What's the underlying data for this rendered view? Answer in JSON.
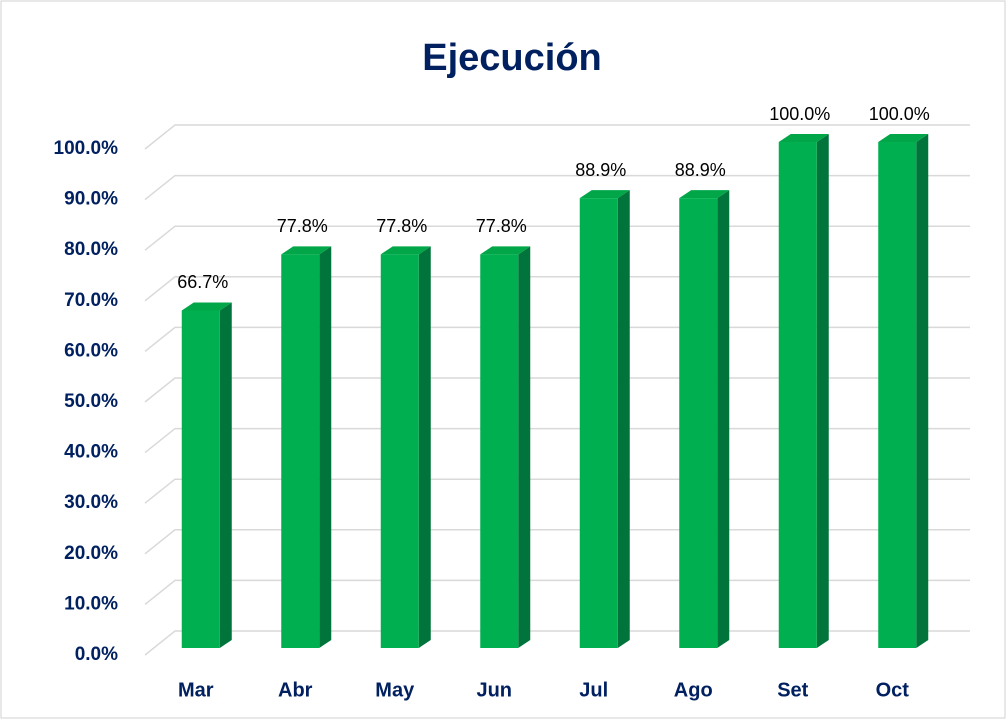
{
  "chart_data": {
    "type": "bar3d",
    "title": "Ejecución",
    "categories": [
      "Mar",
      "Abr",
      "May",
      "Jun",
      "Jul",
      "Ago",
      "Set",
      "Oct"
    ],
    "values": [
      66.7,
      77.8,
      77.8,
      77.8,
      88.9,
      88.9,
      100.0,
      100.0
    ],
    "value_labels": [
      "66.7%",
      "77.8%",
      "77.8%",
      "77.8%",
      "88.9%",
      "88.9%",
      "100.0%",
      "100.0%"
    ],
    "color": "#00b050",
    "ylim": [
      0,
      100
    ],
    "yticks": [
      {
        "value": 0,
        "label": "0.0%"
      },
      {
        "value": 10,
        "label": "10.0%"
      },
      {
        "value": 20,
        "label": "20.0%"
      },
      {
        "value": 30,
        "label": "30.0%"
      },
      {
        "value": 40,
        "label": "40.0%"
      },
      {
        "value": 50,
        "label": "50.0%"
      },
      {
        "value": 60,
        "label": "60.0%"
      },
      {
        "value": 70,
        "label": "70.0%"
      },
      {
        "value": 80,
        "label": "80.0%"
      },
      {
        "value": 90,
        "label": "90.0%"
      },
      {
        "value": 100,
        "label": "100.0%"
      }
    ],
    "grid": true
  }
}
